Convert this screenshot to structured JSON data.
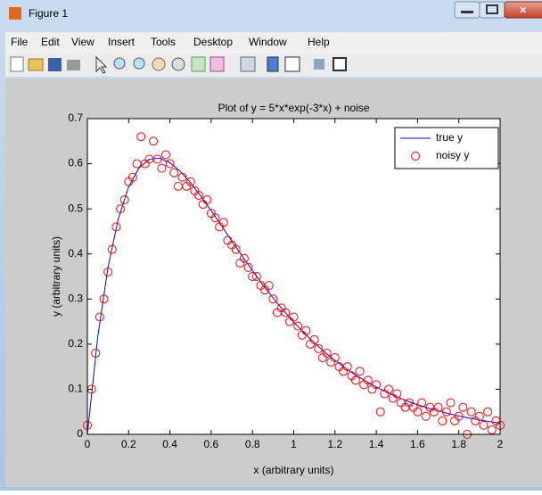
{
  "window": {
    "title": "Figure 1",
    "menu": [
      "File",
      "Edit",
      "View",
      "Insert",
      "Tools",
      "Desktop",
      "Window",
      "Help"
    ]
  },
  "chart_data": {
    "type": "line",
    "title": "Plot of y = 5*x*exp(-3*x) + noise",
    "x_label": "x (arbitrary units)",
    "y_label": "y (arbitrary units)",
    "xlim": [
      0,
      2
    ],
    "xticks": [
      0,
      0.2,
      0.4,
      0.6,
      0.8,
      1,
      1.2,
      1.4,
      1.6,
      1.8,
      2
    ],
    "ylim": [
      0,
      0.7
    ],
    "yticks": [
      0,
      0.1,
      0.2,
      0.3,
      0.4,
      0.5,
      0.6,
      0.7
    ],
    "legend": "top-right",
    "series": [
      {
        "name": "true y",
        "type": "line",
        "color": "#0000ff",
        "x": [
          0,
          0.05,
          0.1,
          0.15,
          0.2,
          0.25,
          0.3,
          0.35,
          0.4,
          0.45,
          0.5,
          0.55,
          0.6,
          0.65,
          0.7,
          0.75,
          0.8,
          0.85,
          0.9,
          0.95,
          1,
          1.05,
          1.1,
          1.15,
          1.2,
          1.25,
          1.3,
          1.35,
          1.4,
          1.45,
          1.5,
          1.55,
          1.6,
          1.65,
          1.7,
          1.75,
          1.8,
          1.85,
          1.9,
          1.95,
          2
        ],
        "values": [
          0,
          0.2152,
          0.3704,
          0.4782,
          0.5488,
          0.5905,
          0.6099,
          0.6124,
          0.6024,
          0.5832,
          0.5578,
          0.528,
          0.4959,
          0.4625,
          0.4287,
          0.3953,
          0.3629,
          0.3319,
          0.3024,
          0.2747,
          0.2489,
          0.2251,
          0.2028,
          0.1825,
          0.1639,
          0.1469,
          0.1314,
          0.1175,
          0.105,
          0.0935,
          0.0833,
          0.0741,
          0.0658,
          0.0584,
          0.0518,
          0.0459,
          0.0407,
          0.036,
          0.0318,
          0.0281,
          0.0248
        ]
      },
      {
        "name": "noisy y",
        "type": "scatter",
        "color": "#ff0000",
        "x": [
          0,
          0.02,
          0.04,
          0.06,
          0.08,
          0.1,
          0.12,
          0.14,
          0.16,
          0.18,
          0.2,
          0.22,
          0.24,
          0.26,
          0.28,
          0.3,
          0.32,
          0.34,
          0.36,
          0.38,
          0.4,
          0.42,
          0.44,
          0.46,
          0.48,
          0.5,
          0.52,
          0.54,
          0.56,
          0.58,
          0.6,
          0.62,
          0.64,
          0.66,
          0.68,
          0.7,
          0.72,
          0.74,
          0.76,
          0.78,
          0.8,
          0.82,
          0.84,
          0.86,
          0.88,
          0.9,
          0.92,
          0.94,
          0.96,
          0.98,
          1,
          1.02,
          1.04,
          1.06,
          1.08,
          1.1,
          1.12,
          1.14,
          1.16,
          1.18,
          1.2,
          1.22,
          1.24,
          1.26,
          1.28,
          1.3,
          1.32,
          1.34,
          1.36,
          1.38,
          1.4,
          1.42,
          1.44,
          1.46,
          1.48,
          1.5,
          1.52,
          1.54,
          1.56,
          1.58,
          1.6,
          1.62,
          1.64,
          1.66,
          1.68,
          1.7,
          1.72,
          1.74,
          1.76,
          1.78,
          1.8,
          1.82,
          1.84,
          1.86,
          1.88,
          1.9,
          1.92,
          1.94,
          1.96,
          1.98,
          2
        ],
        "values": [
          0.02,
          0.1,
          0.18,
          0.26,
          0.3,
          0.36,
          0.41,
          0.46,
          0.5,
          0.52,
          0.56,
          0.57,
          0.6,
          0.66,
          0.6,
          0.61,
          0.65,
          0.61,
          0.59,
          0.62,
          0.6,
          0.58,
          0.55,
          0.57,
          0.55,
          0.56,
          0.54,
          0.53,
          0.51,
          0.52,
          0.49,
          0.48,
          0.46,
          0.47,
          0.43,
          0.42,
          0.41,
          0.38,
          0.39,
          0.37,
          0.35,
          0.35,
          0.33,
          0.32,
          0.33,
          0.3,
          0.27,
          0.28,
          0.27,
          0.25,
          0.26,
          0.24,
          0.22,
          0.23,
          0.2,
          0.21,
          0.19,
          0.17,
          0.18,
          0.16,
          0.17,
          0.15,
          0.14,
          0.15,
          0.13,
          0.12,
          0.14,
          0.11,
          0.12,
          0.1,
          0.11,
          0.05,
          0.09,
          0.1,
          0.08,
          0.09,
          0.07,
          0.06,
          0.07,
          0.06,
          0.05,
          0.07,
          0.04,
          0.06,
          0.05,
          0.06,
          0.03,
          0.05,
          0.07,
          0.03,
          0.04,
          0.06,
          0,
          0.05,
          0.03,
          0.04,
          0.02,
          0.05,
          0.01,
          0.03,
          0.02
        ]
      }
    ]
  }
}
